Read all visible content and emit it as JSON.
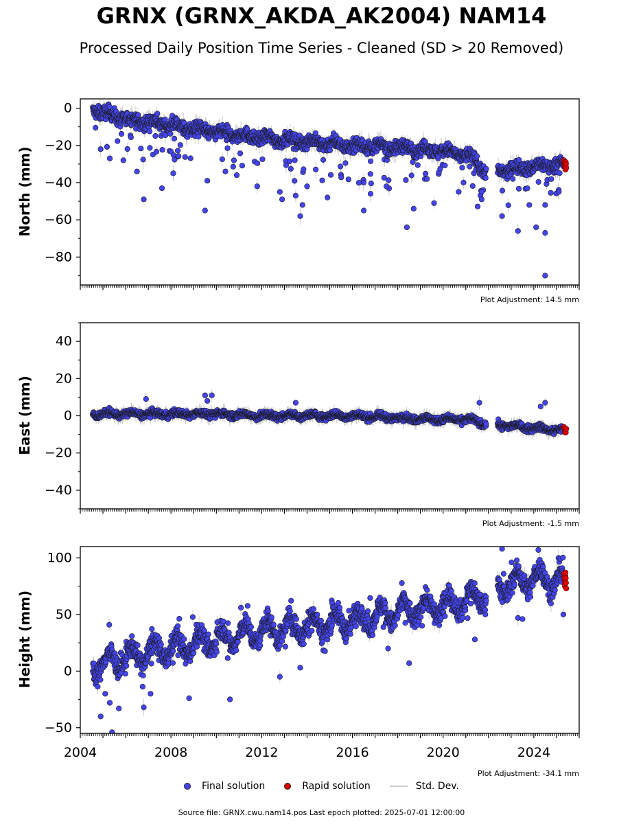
{
  "title": "GRNX (GRNX_AKDA_AK2004) NAM14",
  "subtitle": "Processed Daily Position Time Series - Cleaned (SD > 20 Removed)",
  "legend": {
    "final": "Final solution",
    "rapid": "Rapid solution",
    "std": "Std. Dev."
  },
  "footer": "Source file: GRNX.cwu.nam14.pos  Last epoch plotted: 2025-07-01 12:00:00",
  "colors": {
    "final": "#4444ee",
    "rapid": "#dd0000",
    "edge": "#1a1a1a",
    "std_dev": "#cccccc"
  },
  "chart_data": [
    {
      "type": "scatter",
      "ylabel": "North (mm)",
      "annotation": "Plot Adjustment: 14.5 mm",
      "xlim": [
        2004.0,
        2026.0
      ],
      "ylim": [
        -95,
        5
      ],
      "yticks": [
        0,
        -20,
        -40,
        -60,
        -80
      ],
      "ytick_labels": [
        "0",
        "−20",
        "−40",
        "−60",
        "−80"
      ],
      "x_tick_labels_shown": false,
      "trend": [
        [
          2004.6,
          -1
        ],
        [
          2006.0,
          -6
        ],
        [
          2008.0,
          -9
        ],
        [
          2010.0,
          -13
        ],
        [
          2012.0,
          -16
        ],
        [
          2014.0,
          -18
        ],
        [
          2016.0,
          -20
        ],
        [
          2018.0,
          -21
        ],
        [
          2020.0,
          -23
        ],
        [
          2021.2,
          -26
        ],
        [
          2021.8,
          -33
        ],
        [
          2022.5,
          -34
        ],
        [
          2023.5,
          -32
        ],
        [
          2025.3,
          -30
        ]
      ],
      "gaps": [
        [
          2021.9,
          2022.4
        ]
      ],
      "outliers": [
        [
          2004.9,
          -22
        ],
        [
          2005.3,
          -27
        ],
        [
          2005.9,
          -28
        ],
        [
          2006.5,
          -34
        ],
        [
          2006.8,
          -49
        ],
        [
          2007.6,
          -43
        ],
        [
          2008.1,
          -35
        ],
        [
          2009.5,
          -55
        ],
        [
          2009.6,
          -39
        ],
        [
          2010.4,
          -34
        ],
        [
          2010.9,
          -36
        ],
        [
          2011.8,
          -42
        ],
        [
          2012.8,
          -45
        ],
        [
          2012.9,
          -49
        ],
        [
          2013.5,
          -47
        ],
        [
          2013.7,
          -58
        ],
        [
          2013.8,
          -52
        ],
        [
          2014.0,
          -42
        ],
        [
          2014.9,
          -48
        ],
        [
          2016.5,
          -55
        ],
        [
          2016.8,
          -46
        ],
        [
          2017.5,
          -42
        ],
        [
          2018.4,
          -64
        ],
        [
          2018.7,
          -54
        ],
        [
          2019.6,
          -51
        ],
        [
          2020.9,
          -40
        ],
        [
          2021.7,
          -45
        ],
        [
          2021.7,
          -49
        ],
        [
          2022.6,
          -58
        ],
        [
          2023.3,
          -66
        ],
        [
          2023.8,
          -52
        ],
        [
          2024.1,
          -64
        ],
        [
          2024.5,
          -90
        ],
        [
          2024.5,
          -67
        ],
        [
          2024.5,
          -52
        ],
        [
          2025.1,
          -45
        ]
      ],
      "rapid_points": [
        [
          2025.33,
          -28
        ],
        [
          2025.34,
          -29
        ],
        [
          2025.35,
          -30
        ],
        [
          2025.36,
          -31
        ],
        [
          2025.37,
          -31
        ],
        [
          2025.38,
          -30
        ],
        [
          2025.38,
          -32
        ],
        [
          2025.39,
          -31
        ],
        [
          2025.4,
          -33
        ],
        [
          2025.41,
          -29
        ],
        [
          2025.42,
          -30
        ],
        [
          2025.43,
          -32
        ]
      ]
    },
    {
      "type": "scatter",
      "ylabel": "East (mm)",
      "annotation": "Plot Adjustment: -1.5 mm",
      "xlim": [
        2004.0,
        2026.0
      ],
      "ylim": [
        -50,
        50
      ],
      "yticks": [
        40,
        20,
        0,
        -20,
        -40
      ],
      "ytick_labels": [
        "40",
        "20",
        "0",
        "−20",
        "−40"
      ],
      "x_tick_labels_shown": false,
      "trend": [
        [
          2004.6,
          1
        ],
        [
          2006.0,
          1
        ],
        [
          2008.0,
          1
        ],
        [
          2010.0,
          1
        ],
        [
          2012.0,
          0
        ],
        [
          2014.0,
          0
        ],
        [
          2016.0,
          0
        ],
        [
          2018.0,
          -1
        ],
        [
          2020.0,
          -2
        ],
        [
          2021.2,
          -2
        ],
        [
          2021.8,
          -4
        ],
        [
          2022.5,
          -5
        ],
        [
          2023.5,
          -6
        ],
        [
          2025.3,
          -8
        ]
      ],
      "gaps": [
        [
          2021.9,
          2022.4
        ]
      ],
      "outliers": [
        [
          2006.9,
          9
        ],
        [
          2009.5,
          11
        ],
        [
          2009.8,
          11
        ],
        [
          2009.6,
          8
        ],
        [
          2013.5,
          7
        ],
        [
          2021.6,
          7
        ],
        [
          2024.3,
          5
        ],
        [
          2024.5,
          7
        ]
      ],
      "rapid_points": [
        [
          2025.33,
          -6
        ],
        [
          2025.35,
          -7
        ],
        [
          2025.37,
          -8
        ],
        [
          2025.38,
          -9
        ],
        [
          2025.4,
          -8
        ],
        [
          2025.41,
          -9
        ],
        [
          2025.43,
          -7
        ]
      ]
    },
    {
      "type": "scatter",
      "ylabel": "Height (mm)",
      "annotation": "Plot Adjustment: -34.1 mm",
      "xlim": [
        2004.0,
        2026.0
      ],
      "ylim": [
        -55,
        110
      ],
      "yticks": [
        100,
        50,
        0,
        -50
      ],
      "ytick_labels": [
        "100",
        "50",
        "0",
        "−50"
      ],
      "x_tick_labels_shown": true,
      "xticks": [
        2004,
        2008,
        2012,
        2016,
        2020,
        2024
      ],
      "xtick_labels": [
        "2004",
        "2008",
        "2012",
        "2016",
        "2020",
        "2024"
      ],
      "trend": [
        [
          2004.6,
          5
        ],
        [
          2006.0,
          12
        ],
        [
          2008.0,
          20
        ],
        [
          2010.0,
          28
        ],
        [
          2012.0,
          35
        ],
        [
          2014.0,
          40
        ],
        [
          2016.0,
          45
        ],
        [
          2018.0,
          52
        ],
        [
          2020.0,
          58
        ],
        [
          2021.5,
          65
        ],
        [
          2022.5,
          75
        ],
        [
          2024.0,
          82
        ],
        [
          2025.3,
          80
        ]
      ],
      "gaps": [
        [
          2021.9,
          2022.4
        ]
      ],
      "outliers": [
        [
          2004.9,
          -40
        ],
        [
          2005.1,
          -20
        ],
        [
          2005.3,
          -28
        ],
        [
          2005.4,
          -54
        ],
        [
          2005.7,
          -33
        ],
        [
          2006.8,
          -32
        ],
        [
          2007.1,
          -20
        ],
        [
          2008.8,
          -24
        ],
        [
          2010.6,
          -25
        ],
        [
          2012.8,
          -5
        ],
        [
          2013.7,
          3
        ],
        [
          2018.5,
          7
        ],
        [
          2021.4,
          28
        ],
        [
          2022.6,
          108
        ],
        [
          2023.3,
          47
        ],
        [
          2023.5,
          46
        ],
        [
          2024.2,
          107
        ],
        [
          2025.3,
          50
        ]
      ],
      "rapid_points": [
        [
          2025.33,
          86
        ],
        [
          2025.34,
          83
        ],
        [
          2025.35,
          80
        ],
        [
          2025.36,
          77
        ],
        [
          2025.37,
          75
        ],
        [
          2025.38,
          79
        ],
        [
          2025.39,
          84
        ],
        [
          2025.4,
          87
        ],
        [
          2025.41,
          82
        ],
        [
          2025.42,
          78
        ],
        [
          2025.43,
          73
        ]
      ]
    }
  ]
}
